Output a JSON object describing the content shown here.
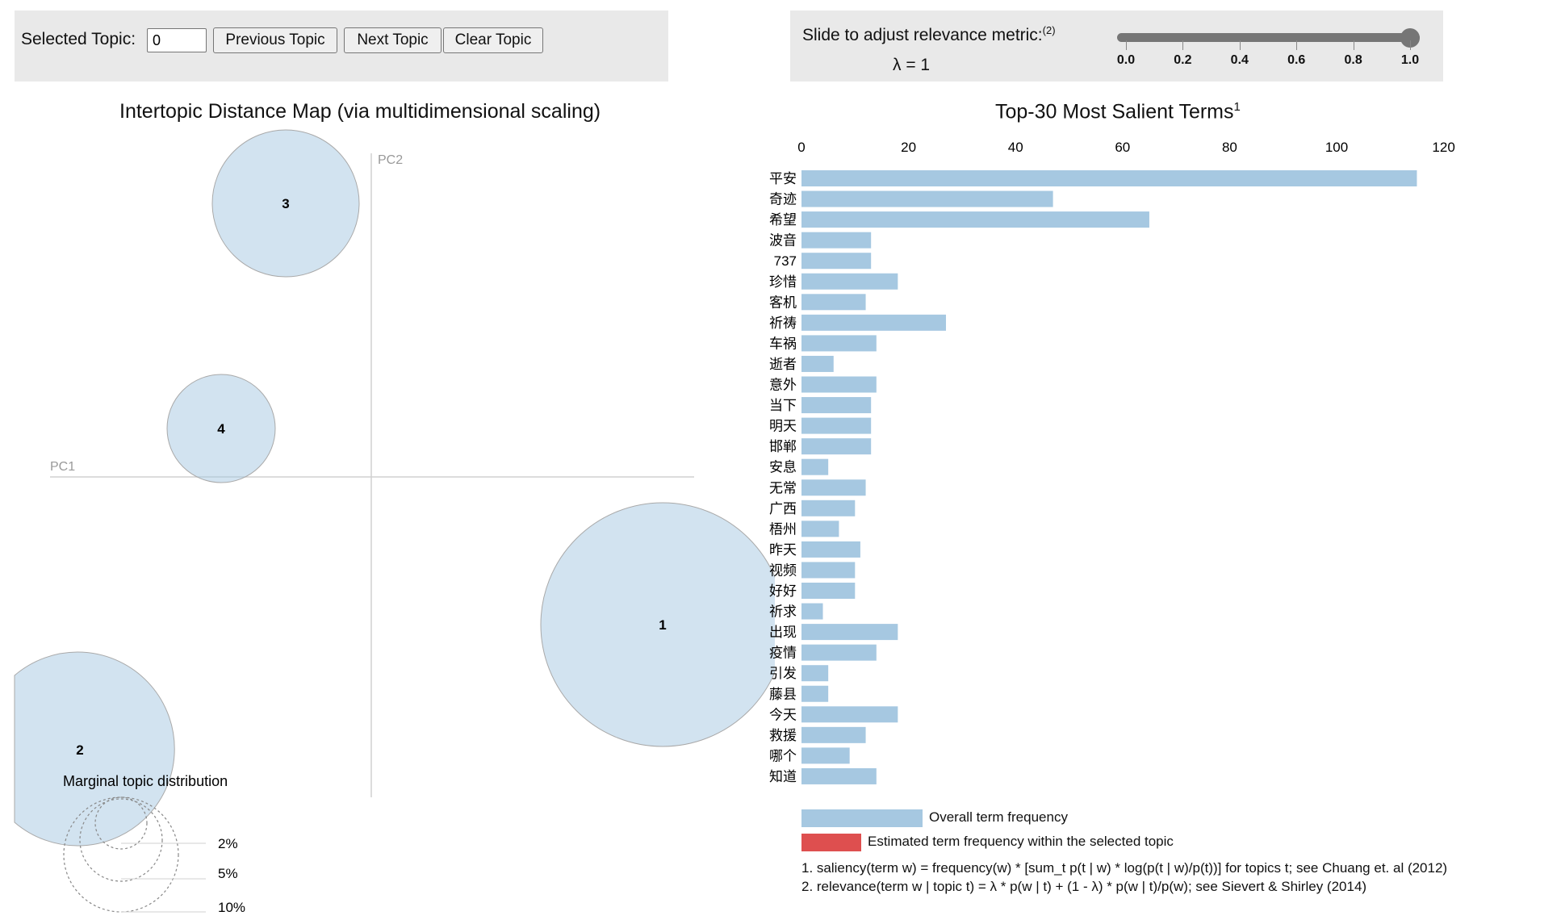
{
  "topic_controls": {
    "selected_label": "Selected Topic:",
    "selected_value": "0",
    "prev_label": "Previous Topic",
    "next_label": "Next Topic",
    "clear_label": "Clear Topic"
  },
  "lambda_controls": {
    "label": "Slide to adjust relevance metric:",
    "label_sup": "(2)",
    "value_text": "λ = 1",
    "value": 1.0,
    "ticks": [
      "0.0",
      "0.2",
      "0.4",
      "0.6",
      "0.8",
      "1.0"
    ]
  },
  "distance_map": {
    "title": "Intertopic Distance Map (via multidimensional scaling)",
    "pc1": "PC1",
    "pc2": "PC2",
    "topics": [
      {
        "label": "1"
      },
      {
        "label": "2"
      },
      {
        "label": "3"
      },
      {
        "label": "4"
      }
    ],
    "marginal_title": "Marginal topic distribution",
    "marginal_labels": [
      "2%",
      "5%",
      "10%"
    ]
  },
  "chart_data": {
    "type": "bar",
    "title": "Top-30 Most Salient Terms",
    "title_sup": "1",
    "xlim": [
      0,
      120
    ],
    "xticks": [
      "0",
      "20",
      "40",
      "60",
      "80",
      "100",
      "120"
    ],
    "categories": [
      "平安",
      "奇迹",
      "希望",
      "波音",
      "737",
      "珍惜",
      "客机",
      "祈祷",
      "车祸",
      "逝者",
      "意外",
      "当下",
      "明天",
      "邯郸",
      "安息",
      "无常",
      "广西",
      "梧州",
      "昨天",
      "视频",
      "好好",
      "祈求",
      "出现",
      "疫情",
      "引发",
      "藤县",
      "今天",
      "救援",
      "哪个",
      "知道"
    ],
    "series": [
      {
        "name": "Overall term frequency",
        "color": "#a6c8e1",
        "values": [
          115,
          47,
          65,
          13,
          13,
          18,
          12,
          27,
          14,
          6,
          14,
          13,
          13,
          13,
          5,
          12,
          10,
          7,
          11,
          10,
          10,
          4,
          18,
          14,
          5,
          5,
          18,
          12,
          9,
          14
        ]
      }
    ]
  },
  "legend": {
    "overall": "Overall term frequency",
    "estimated": "Estimated term frequency within the selected topic",
    "overall_color": "#a6c8e1",
    "estimated_color": "#de4f4f"
  },
  "footnotes": {
    "n1": "1. saliency(term w) = frequency(w) * [sum_t p(t | w) * log(p(t | w)/p(t))] for topics t; see Chuang et. al (2012)",
    "n2": "2. relevance(term w | topic t) = λ * p(w | t) + (1 - λ) * p(w | t)/p(w); see Sievert & Shirley (2014)"
  }
}
